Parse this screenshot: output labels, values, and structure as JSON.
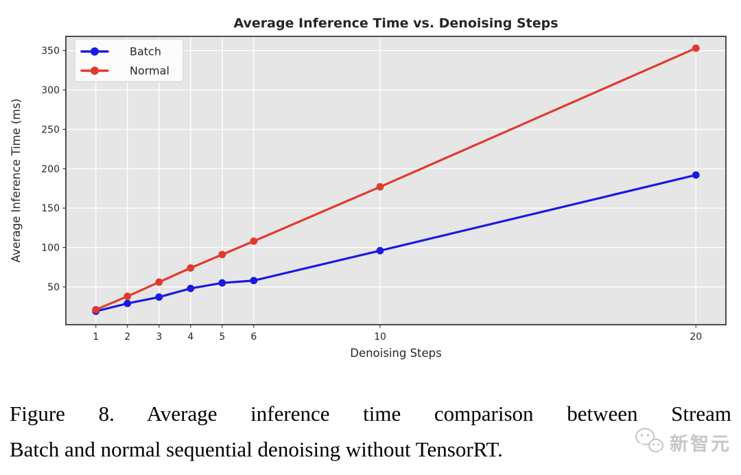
{
  "chart_data": {
    "type": "line",
    "title": "Average Inference Time vs. Denoising Steps",
    "xlabel": "Denoising Steps",
    "ylabel": "Average Inference Time (ms)",
    "x": [
      1,
      2,
      3,
      4,
      5,
      6,
      10,
      20
    ],
    "series": [
      {
        "name": "Batch",
        "color": "#1a1ae0",
        "values": [
          19,
          29,
          37,
          48,
          55,
          58,
          96,
          192
        ]
      },
      {
        "name": "Normal",
        "color": "#e03a2e",
        "values": [
          21,
          38,
          56,
          74,
          91,
          108,
          177,
          353
        ]
      }
    ],
    "x_ticks": [
      1,
      2,
      3,
      4,
      5,
      6,
      10,
      20
    ],
    "y_ticks": [
      50,
      100,
      150,
      200,
      250,
      300,
      350
    ],
    "xlim": [
      0.05,
      20.95
    ],
    "ylim": [
      2,
      368
    ],
    "grid": true,
    "legend_position": "upper-left",
    "plot_bg_color": "#e6e6e6",
    "grid_color": "#ffffff",
    "frame_color": "#3b3b3b",
    "line_width": 3.2,
    "marker": "circle",
    "marker_radius": 5.4
  },
  "caption": {
    "line1": "Figure 8.  Average inference time comparison between Stream",
    "line2": "Batch and normal sequential denoising without TensorRT."
  },
  "watermark": {
    "text": "新智元",
    "icon": "wechat-icon",
    "color": "#c4c4c4"
  }
}
